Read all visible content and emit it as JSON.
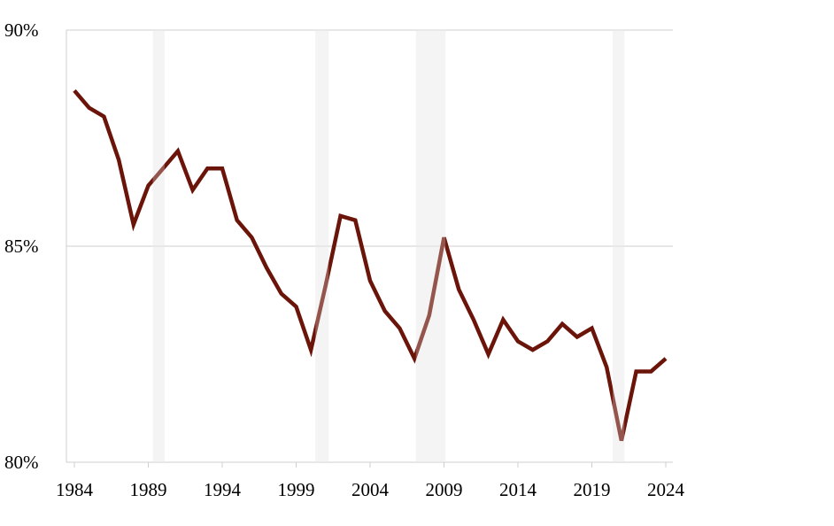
{
  "chart_data": {
    "type": "line",
    "title": "",
    "xlabel": "",
    "ylabel": "",
    "xlim": [
      1984,
      2024
    ],
    "ylim": [
      80,
      90
    ],
    "y_ticks": [
      "90%",
      "85%",
      "80%"
    ],
    "y_tick_values": [
      90,
      85,
      80
    ],
    "x_ticks": [
      "1984",
      "1989",
      "1994",
      "1999",
      "2004",
      "2009",
      "2014",
      "2019",
      "2024"
    ],
    "x_tick_values": [
      1984,
      1989,
      1994,
      1999,
      2004,
      2009,
      2014,
      2019,
      2024
    ],
    "grid": "horizontal",
    "line_color": "#6b1409",
    "shaded_band_color": "#f0f0f0",
    "shaded_bands": [
      [
        1989.3,
        1990.1
      ],
      [
        2000.3,
        2001.2
      ],
      [
        2007.1,
        2009.1
      ],
      [
        2020.4,
        2021.2
      ]
    ],
    "x": [
      1984,
      1985,
      1986,
      1987,
      1988,
      1989,
      1990,
      1991,
      1992,
      1993,
      1994,
      1995,
      1996,
      1997,
      1998,
      1999,
      2000,
      2001,
      2002,
      2003,
      2004,
      2005,
      2006,
      2007,
      2008,
      2009,
      2010,
      2011,
      2012,
      2013,
      2014,
      2015,
      2016,
      2017,
      2018,
      2019,
      2020,
      2021,
      2022,
      2023,
      2024
    ],
    "values": [
      88.6,
      88.2,
      88.0,
      87.0,
      85.5,
      86.4,
      86.8,
      87.2,
      86.3,
      86.8,
      86.8,
      85.6,
      85.2,
      84.5,
      83.9,
      83.6,
      82.6,
      84.1,
      85.7,
      85.6,
      84.2,
      83.5,
      83.1,
      82.4,
      83.4,
      85.2,
      84.0,
      83.3,
      82.5,
      83.3,
      82.8,
      82.6,
      82.8,
      83.2,
      82.9,
      83.1,
      82.2,
      80.5,
      82.1,
      82.1,
      82.4
    ]
  }
}
